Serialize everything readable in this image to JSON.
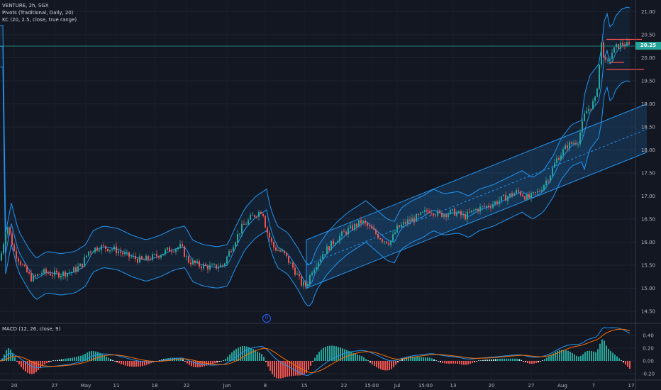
{
  "legend": {
    "symbol": "VENTURE, 2h, SGX",
    "pivots": "Pivots (Traditional, Daily, 20)",
    "kc": "KC (20, 2.5, close, true range)"
  },
  "macd_legend": "MACD (12, 26, close, 9)",
  "last_price_label": "20.25",
  "event_marker": "D",
  "colors": {
    "background": "#131722",
    "up": "#26a69a",
    "down": "#ef5350",
    "channel": "#2196f3",
    "pivot": "#ff5252",
    "macd_line": "#2196f3",
    "signal_line": "#ff6d00"
  },
  "price_axis": [
    "21.00",
    "20.50",
    "20.00",
    "19.50",
    "19.00",
    "18.50",
    "18.00",
    "17.50",
    "17.00",
    "16.50",
    "16.00",
    "15.50",
    "15.00",
    "14.50"
  ],
  "macd_axis": [
    "0.40",
    "0.20",
    "0.00",
    "-0.20"
  ],
  "time_axis": [
    "20",
    "27",
    "May",
    "11",
    "18",
    "22",
    "Jun",
    "8",
    "15",
    "22",
    "15:00",
    "Jul",
    "15:00",
    "13",
    "20",
    "27",
    "Aug",
    "7",
    "17"
  ],
  "chart_data": {
    "type": "line",
    "ylim": [
      14.3,
      21.2
    ],
    "keypoints": [
      [
        0,
        15.6
      ],
      [
        10,
        16.4
      ],
      [
        20,
        15.8
      ],
      [
        35,
        15.4
      ],
      [
        45,
        15.2
      ],
      [
        60,
        15.35
      ],
      [
        80,
        15.3
      ],
      [
        100,
        15.35
      ],
      [
        115,
        15.5
      ],
      [
        125,
        15.8
      ],
      [
        140,
        15.9
      ],
      [
        160,
        15.85
      ],
      [
        180,
        15.7
      ],
      [
        200,
        15.6
      ],
      [
        220,
        15.7
      ],
      [
        240,
        15.85
      ],
      [
        255,
        15.9
      ],
      [
        265,
        15.6
      ],
      [
        280,
        15.5
      ],
      [
        300,
        15.45
      ],
      [
        315,
        15.5
      ],
      [
        325,
        15.85
      ],
      [
        340,
        16.3
      ],
      [
        355,
        16.55
      ],
      [
        370,
        16.7
      ],
      [
        375,
        16.3
      ],
      [
        385,
        15.9
      ],
      [
        400,
        15.75
      ],
      [
        415,
        15.4
      ],
      [
        425,
        15.1
      ],
      [
        432,
        15.05
      ],
      [
        440,
        15.4
      ],
      [
        455,
        15.75
      ],
      [
        470,
        16.0
      ],
      [
        485,
        16.2
      ],
      [
        500,
        16.35
      ],
      [
        510,
        16.45
      ],
      [
        525,
        16.25
      ],
      [
        540,
        16.05
      ],
      [
        550,
        16.0
      ],
      [
        560,
        16.3
      ],
      [
        575,
        16.45
      ],
      [
        590,
        16.55
      ],
      [
        605,
        16.7
      ],
      [
        620,
        16.6
      ],
      [
        640,
        16.65
      ],
      [
        655,
        16.55
      ],
      [
        670,
        16.7
      ],
      [
        690,
        16.8
      ],
      [
        710,
        16.95
      ],
      [
        730,
        17.1
      ],
      [
        745,
        16.95
      ],
      [
        760,
        17.1
      ],
      [
        775,
        17.45
      ],
      [
        785,
        17.8
      ],
      [
        800,
        18.1
      ],
      [
        815,
        18.2
      ],
      [
        825,
        18.8
      ],
      [
        840,
        19.1
      ],
      [
        848,
        20.3
      ],
      [
        855,
        19.8
      ],
      [
        862,
        20.1
      ],
      [
        870,
        20.25
      ],
      [
        878,
        20.3
      ],
      [
        890,
        20.25
      ]
    ],
    "channel": {
      "upper": [
        [
          432,
          16.05
        ],
        [
          912,
          19.0
        ]
      ],
      "mid": [
        [
          432,
          15.5
        ],
        [
          912,
          18.45
        ]
      ],
      "lower": [
        [
          432,
          15.0
        ],
        [
          912,
          17.95
        ]
      ]
    },
    "pivots": [
      {
        "x": [
          855,
          905
        ],
        "y": 20.4
      },
      {
        "x": [
          860,
          880
        ],
        "y": 19.9
      },
      {
        "x": [
          855,
          908
        ],
        "y": 19.75
      }
    ],
    "last_price": 20.25
  }
}
